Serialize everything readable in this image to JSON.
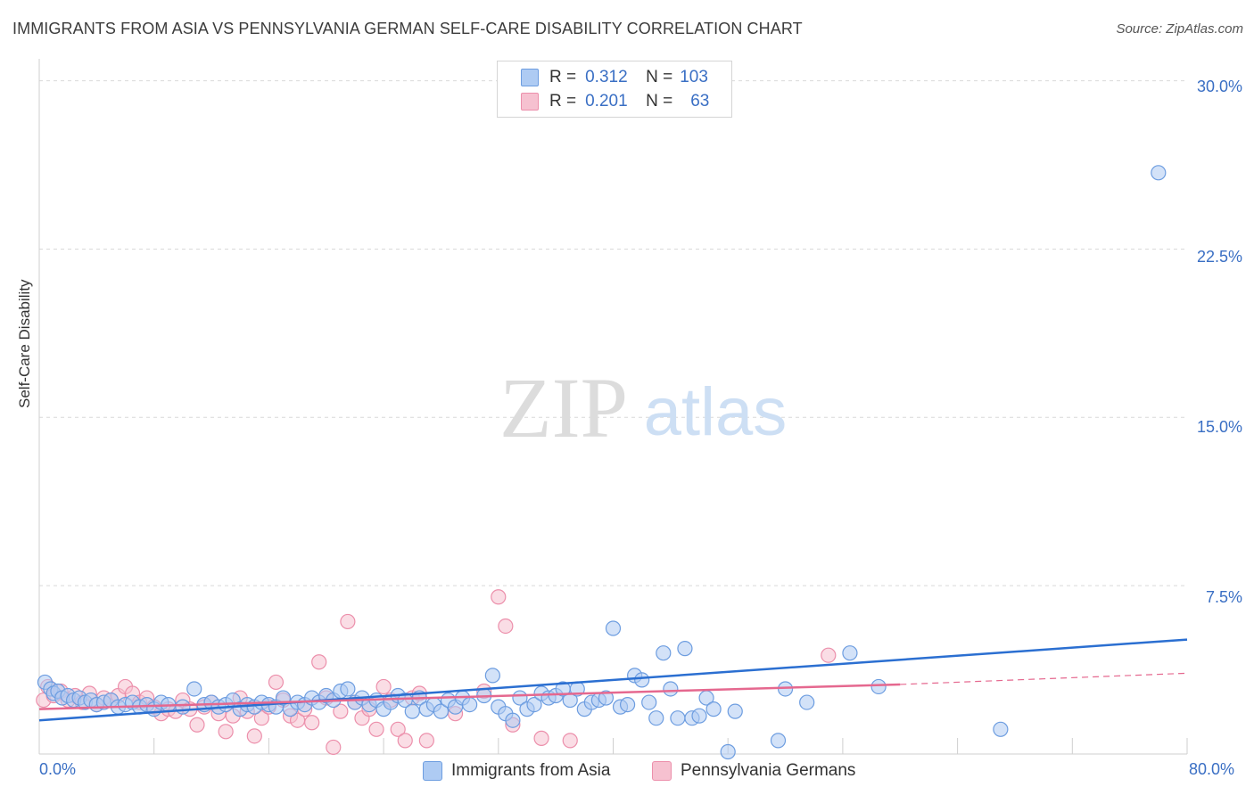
{
  "title": "IMMIGRANTS FROM ASIA VS PENNSYLVANIA GERMAN SELF-CARE DISABILITY CORRELATION CHART",
  "source": "Source: ZipAtlas.com",
  "watermark": {
    "zip": "ZIP",
    "atlas": "atlas"
  },
  "legend": {
    "r_label": "R =",
    "n_label": "N =",
    "rows": [
      {
        "r": "0.312",
        "n": "103"
      },
      {
        "r": "0.201",
        "n": "63"
      }
    ]
  },
  "bottom_legend": [
    "Immigrants from Asia",
    "Pennsylvania Germans"
  ],
  "colors": {
    "blue_fill": "#aecbf3",
    "blue_stroke": "#6d9de0",
    "blue_line": "#2b6fd1",
    "pink_fill": "#f6c1d0",
    "pink_stroke": "#ec8fab",
    "pink_line": "#e5688f",
    "tick_text": "#3a6fc4",
    "grid": "#d9d9d9"
  },
  "chart_data": {
    "type": "scatter",
    "title": "IMMIGRANTS FROM ASIA VS PENNSYLVANIA GERMAN SELF-CARE DISABILITY CORRELATION CHART",
    "xlabel": "",
    "ylabel": "Self-Care Disability",
    "xlim": [
      0,
      80
    ],
    "ylim": [
      0,
      30.5
    ],
    "x_tick_labels": [
      "0.0%",
      "80.0%"
    ],
    "y_ticks": [
      7.5,
      15.0,
      22.5,
      30.0
    ],
    "y_tick_labels": [
      "7.5%",
      "15.0%",
      "22.5%",
      "30.0%"
    ],
    "series": [
      {
        "name": "Immigrants from Asia",
        "r": 0.312,
        "n": 103,
        "trend": {
          "x0": 0,
          "y0": 1.5,
          "x1": 80,
          "y1": 5.1
        },
        "points": [
          [
            0.4,
            3.2
          ],
          [
            0.8,
            2.9
          ],
          [
            1.0,
            2.7
          ],
          [
            1.3,
            2.8
          ],
          [
            1.6,
            2.5
          ],
          [
            2.0,
            2.6
          ],
          [
            2.4,
            2.4
          ],
          [
            2.8,
            2.5
          ],
          [
            3.2,
            2.3
          ],
          [
            3.6,
            2.4
          ],
          [
            4.0,
            2.2
          ],
          [
            4.5,
            2.3
          ],
          [
            5.0,
            2.4
          ],
          [
            5.5,
            2.1
          ],
          [
            6.0,
            2.2
          ],
          [
            6.5,
            2.3
          ],
          [
            7.0,
            2.1
          ],
          [
            7.5,
            2.2
          ],
          [
            8.0,
            2.0
          ],
          [
            8.5,
            2.3
          ],
          [
            9.0,
            2.2
          ],
          [
            10.0,
            2.1
          ],
          [
            10.8,
            2.9
          ],
          [
            11.5,
            2.2
          ],
          [
            12.0,
            2.3
          ],
          [
            12.5,
            2.1
          ],
          [
            13.0,
            2.2
          ],
          [
            13.5,
            2.4
          ],
          [
            14.0,
            2.0
          ],
          [
            14.5,
            2.2
          ],
          [
            15.0,
            2.1
          ],
          [
            15.5,
            2.3
          ],
          [
            16.0,
            2.2
          ],
          [
            16.5,
            2.1
          ],
          [
            17.0,
            2.5
          ],
          [
            17.5,
            2.0
          ],
          [
            18.0,
            2.3
          ],
          [
            18.5,
            2.2
          ],
          [
            19.0,
            2.5
          ],
          [
            19.5,
            2.3
          ],
          [
            20.0,
            2.6
          ],
          [
            20.5,
            2.4
          ],
          [
            21.0,
            2.8
          ],
          [
            21.5,
            2.9
          ],
          [
            22.0,
            2.3
          ],
          [
            22.5,
            2.5
          ],
          [
            23.0,
            2.2
          ],
          [
            23.5,
            2.4
          ],
          [
            24.0,
            2.0
          ],
          [
            24.5,
            2.3
          ],
          [
            25.0,
            2.6
          ],
          [
            25.5,
            2.4
          ],
          [
            26.0,
            1.9
          ],
          [
            26.5,
            2.5
          ],
          [
            27.0,
            2.0
          ],
          [
            27.5,
            2.2
          ],
          [
            28.0,
            1.9
          ],
          [
            28.5,
            2.4
          ],
          [
            29.0,
            2.1
          ],
          [
            29.5,
            2.5
          ],
          [
            30.0,
            2.2
          ],
          [
            31.0,
            2.6
          ],
          [
            31.6,
            3.5
          ],
          [
            32.0,
            2.1
          ],
          [
            32.5,
            1.8
          ],
          [
            33.0,
            1.5
          ],
          [
            33.5,
            2.5
          ],
          [
            34.0,
            2.0
          ],
          [
            34.5,
            2.2
          ],
          [
            35.0,
            2.7
          ],
          [
            35.5,
            2.5
          ],
          [
            36.0,
            2.6
          ],
          [
            36.5,
            2.9
          ],
          [
            37.0,
            2.4
          ],
          [
            37.5,
            2.9
          ],
          [
            38.0,
            2.0
          ],
          [
            38.5,
            2.3
          ],
          [
            39.0,
            2.4
          ],
          [
            39.5,
            2.5
          ],
          [
            40.0,
            5.6
          ],
          [
            40.5,
            2.1
          ],
          [
            41.0,
            2.2
          ],
          [
            41.5,
            3.5
          ],
          [
            42.0,
            3.3
          ],
          [
            42.5,
            2.3
          ],
          [
            43.0,
            1.6
          ],
          [
            43.5,
            4.5
          ],
          [
            44.0,
            2.9
          ],
          [
            44.5,
            1.6
          ],
          [
            45.0,
            4.7
          ],
          [
            45.5,
            1.6
          ],
          [
            46.0,
            1.7
          ],
          [
            46.5,
            2.5
          ],
          [
            47.0,
            2.0
          ],
          [
            48.0,
            0.1
          ],
          [
            48.5,
            1.9
          ],
          [
            51.5,
            0.6
          ],
          [
            52.0,
            2.9
          ],
          [
            53.5,
            2.3
          ],
          [
            56.5,
            4.5
          ],
          [
            58.5,
            3.0
          ],
          [
            67.0,
            1.1
          ],
          [
            78.0,
            25.9
          ]
        ]
      },
      {
        "name": "Pennsylvania Germans",
        "r": 0.201,
        "n": 63,
        "trend": {
          "x0": 0,
          "y0": 2.0,
          "x1": 60,
          "y1": 3.1,
          "dash_x1": 80,
          "dash_y1": 3.6
        },
        "points": [
          [
            0.3,
            2.4
          ],
          [
            0.6,
            3.0
          ],
          [
            1.0,
            2.6
          ],
          [
            1.5,
            2.8
          ],
          [
            2.0,
            2.4
          ],
          [
            2.5,
            2.6
          ],
          [
            3.0,
            2.3
          ],
          [
            3.5,
            2.7
          ],
          [
            4.0,
            2.2
          ],
          [
            4.5,
            2.5
          ],
          [
            5.0,
            2.4
          ],
          [
            5.5,
            2.6
          ],
          [
            6.0,
            3.0
          ],
          [
            6.5,
            2.7
          ],
          [
            7.0,
            2.3
          ],
          [
            7.5,
            2.5
          ],
          [
            8.0,
            2.1
          ],
          [
            8.5,
            1.8
          ],
          [
            9.0,
            2.0
          ],
          [
            9.5,
            1.9
          ],
          [
            10.0,
            2.4
          ],
          [
            10.5,
            2.0
          ],
          [
            11.0,
            1.3
          ],
          [
            11.5,
            2.1
          ],
          [
            12.0,
            2.3
          ],
          [
            12.5,
            1.8
          ],
          [
            13.0,
            1.0
          ],
          [
            13.5,
            1.7
          ],
          [
            14.0,
            2.5
          ],
          [
            14.5,
            1.9
          ],
          [
            15.0,
            0.8
          ],
          [
            15.5,
            1.6
          ],
          [
            16.0,
            2.1
          ],
          [
            16.5,
            3.2
          ],
          [
            17.0,
            2.4
          ],
          [
            17.5,
            1.7
          ],
          [
            18.0,
            1.5
          ],
          [
            18.5,
            2.0
          ],
          [
            19.0,
            1.4
          ],
          [
            19.5,
            4.1
          ],
          [
            20.0,
            2.5
          ],
          [
            20.5,
            0.3
          ],
          [
            21.0,
            1.9
          ],
          [
            21.5,
            5.9
          ],
          [
            22.0,
            2.3
          ],
          [
            22.5,
            1.6
          ],
          [
            23.0,
            2.0
          ],
          [
            23.5,
            1.1
          ],
          [
            24.0,
            3.0
          ],
          [
            24.5,
            2.4
          ],
          [
            25.0,
            1.1
          ],
          [
            25.5,
            0.6
          ],
          [
            26.0,
            2.5
          ],
          [
            26.5,
            2.7
          ],
          [
            27.0,
            0.6
          ],
          [
            29.0,
            1.8
          ],
          [
            31.0,
            2.8
          ],
          [
            32.0,
            7.0
          ],
          [
            32.5,
            5.7
          ],
          [
            33.0,
            1.3
          ],
          [
            35.0,
            0.7
          ],
          [
            37.0,
            0.6
          ],
          [
            55.0,
            4.4
          ]
        ]
      }
    ]
  }
}
